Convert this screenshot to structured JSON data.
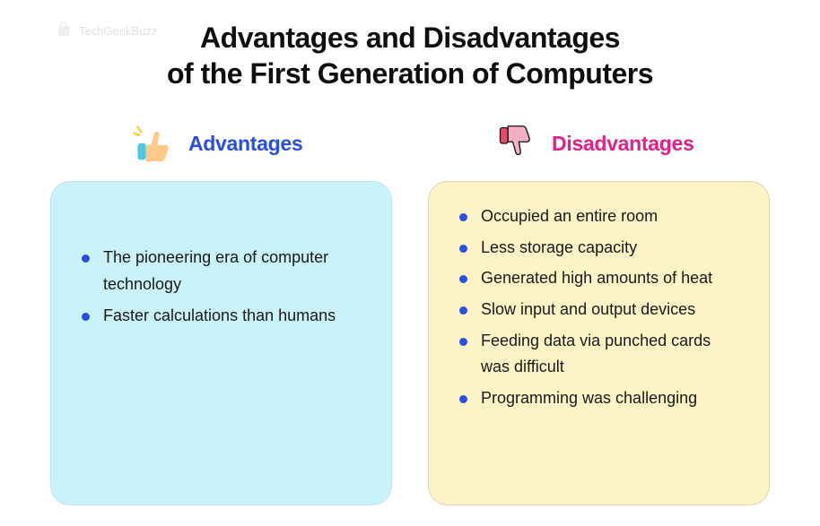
{
  "watermark": {
    "text": "TechGeekBuzz"
  },
  "title_line1": "Advantages and Disadvantages",
  "title_line2": "of the First Generation of Computers",
  "columns": {
    "advantages": {
      "heading": "Advantages",
      "heading_color": "#2a4fe0",
      "card_bg": "#c9f2f9",
      "bullet_color": "#2a4fe0",
      "items": [
        "The pioneering era of computer technology",
        "Faster calculations than humans"
      ]
    },
    "disadvantages": {
      "heading": "Disadvantages",
      "heading_color": "#e0218a",
      "card_bg": "#fdf3c7",
      "bullet_color": "#2a4fe0",
      "items": [
        "Occupied an entire room",
        "Less storage capacity",
        "Generated high amounts of heat",
        "Slow input and output devices",
        "Feeding data via punched cards was difficult",
        "Programming was challenging"
      ]
    }
  },
  "styling": {
    "page_bg": "#ffffff",
    "title_color": "#0e0e0e",
    "title_fontsize": 32,
    "heading_fontsize": 23,
    "body_fontsize": 18,
    "card_radius": 22,
    "thumbs_up_colors": {
      "hand": "#ffc98a",
      "sleeve": "#4ec8e0",
      "sparkle": "#ffd24a"
    },
    "thumbs_down_colors": {
      "hand": "#f6b0c3",
      "sleeve": "#e54b6b",
      "outline": "#111"
    }
  }
}
